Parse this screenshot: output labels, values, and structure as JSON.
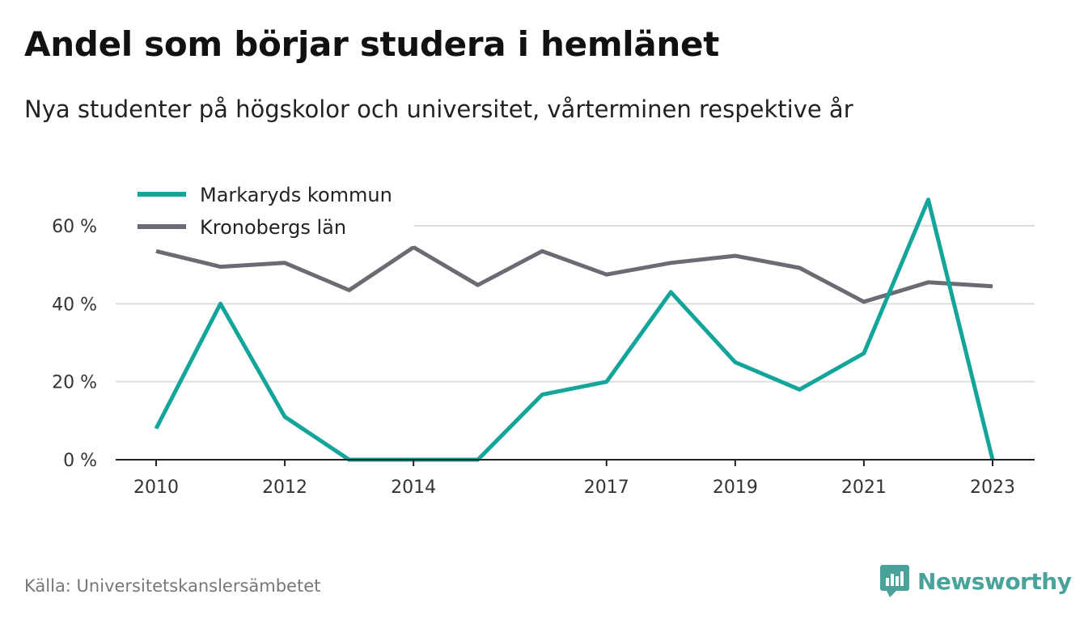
{
  "title": "Andel som börjar studera i hemlänet",
  "subtitle": "Nya studenter på högskolor och universitet, vårterminen respektive år",
  "source": "Källa: Universitetskanslersämbetet",
  "brand": "Newsworthy",
  "colors": {
    "markaryd": "#14a59a",
    "kronoberg": "#6b6b73",
    "grid": "#dddddd",
    "axis": "#222222",
    "brand": "#4aa39a"
  },
  "chart_data": {
    "type": "line",
    "x": [
      2010,
      2011,
      2012,
      2013,
      2014,
      2015,
      2016,
      2017,
      2018,
      2019,
      2020,
      2021,
      2022,
      2023
    ],
    "xticks": [
      2010,
      2012,
      2014,
      2017,
      2019,
      2021,
      2023
    ],
    "yticks": [
      0,
      20,
      40,
      60
    ],
    "ytick_labels": [
      "0 %",
      "20 %",
      "40 %",
      "60 %"
    ],
    "ylim": [
      0,
      70
    ],
    "grid": true,
    "legend_position": "top-left",
    "series": [
      {
        "name": "Markaryds kommun",
        "color": "#14a59a",
        "values": [
          8,
          40,
          11,
          0,
          0,
          0,
          16.7,
          20,
          43,
          25,
          18,
          27.3,
          66.7,
          0
        ]
      },
      {
        "name": "Kronobergs län",
        "color": "#6b6b73",
        "values": [
          53.5,
          49.5,
          50.5,
          43.5,
          54.5,
          44.8,
          53.5,
          47.5,
          50.5,
          52.3,
          49.2,
          40.5,
          45.5,
          44.5
        ]
      }
    ]
  }
}
